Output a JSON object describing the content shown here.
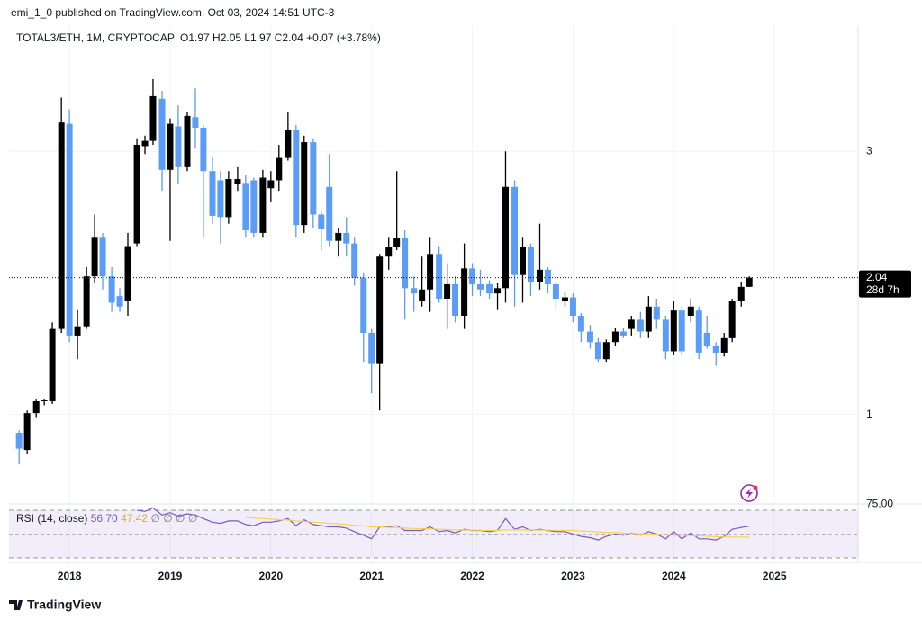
{
  "header": "emi_1_0 published on TradingView.com, Oct 03, 2024 14:51 UTC-3",
  "chart_data": {
    "type": "candlestick",
    "symbol": "TOTAL3/ETH, 1M, CRYPTOCAP",
    "ohlc_text": "O1.97  H2.05  L1.97  C2.04  +0.07 (+3.78%)",
    "up_color": "#000000",
    "down_color": "#5b9cf6",
    "x": [
      2017.5,
      2017.58,
      2017.67,
      2017.75,
      2017.83,
      2017.92,
      2018.0,
      2018.08,
      2018.17,
      2018.25,
      2018.33,
      2018.42,
      2018.5,
      2018.58,
      2018.67,
      2018.75,
      2018.83,
      2018.92,
      2019.0,
      2019.08,
      2019.17,
      2019.25,
      2019.33,
      2019.42,
      2019.5,
      2019.58,
      2019.67,
      2019.75,
      2019.83,
      2019.92,
      2020.0,
      2020.08,
      2020.17,
      2020.25,
      2020.33,
      2020.42,
      2020.5,
      2020.58,
      2020.67,
      2020.75,
      2020.83,
      2020.92,
      2021.0,
      2021.08,
      2021.17,
      2021.25,
      2021.33,
      2021.42,
      2021.5,
      2021.58,
      2021.67,
      2021.75,
      2021.83,
      2021.92,
      2022.0,
      2022.08,
      2022.17,
      2022.25,
      2022.33,
      2022.42,
      2022.5,
      2022.58,
      2022.67,
      2022.75,
      2022.83,
      2022.92,
      2023.0,
      2023.08,
      2023.17,
      2023.25,
      2023.33,
      2023.42,
      2023.5,
      2023.58,
      2023.67,
      2023.75,
      2023.83,
      2023.92,
      2024.0,
      2024.08,
      2024.17,
      2024.25,
      2024.33,
      2024.42,
      2024.5,
      2024.58,
      2024.67,
      2024.75
    ],
    "open": [
      0.86,
      0.73,
      1.01,
      1.1,
      1.1,
      1.65,
      3.21,
      1.6,
      1.67,
      2.05,
      2.35,
      2.05,
      1.9,
      1.86,
      2.3,
      3.04,
      3.08,
      3.4,
      2.86,
      3.19,
      2.88,
      3.26,
      3.18,
      2.85,
      2.78,
      2.5,
      2.75,
      2.76,
      2.78,
      2.38,
      2.72,
      2.78,
      2.95,
      3.16,
      2.44,
      3.07,
      2.52,
      2.73,
      2.32,
      2.38,
      2.3,
      2.04,
      1.62,
      1.39,
      2.2,
      2.27,
      2.34,
      1.96,
      1.86,
      1.95,
      2.22,
      1.88,
      1.99,
      1.75,
      2.11,
      1.99,
      1.99,
      1.92,
      1.96,
      2.73,
      2.06,
      2.27,
      2.01,
      2.1,
      1.99,
      1.86,
      1.89,
      1.75,
      1.63,
      1.55,
      1.42,
      1.55,
      1.63,
      1.65,
      1.72,
      1.63,
      1.82,
      1.72,
      1.48,
      1.79,
      1.75,
      1.79,
      1.62,
      1.52,
      1.47,
      1.58,
      1.86,
      1.97
    ],
    "high": [
      0.88,
      1.03,
      1.12,
      1.12,
      1.7,
      3.41,
      3.32,
      1.8,
      2.12,
      2.52,
      2.38,
      2.12,
      1.96,
      2.38,
      3.1,
      3.12,
      3.55,
      3.46,
      3.25,
      3.35,
      3.3,
      3.48,
      3.2,
      2.96,
      2.85,
      2.85,
      2.88,
      2.82,
      2.8,
      2.86,
      2.85,
      3.05,
      3.3,
      3.2,
      3.12,
      3.1,
      2.55,
      2.98,
      2.42,
      2.5,
      2.35,
      2.08,
      1.65,
      2.22,
      2.35,
      2.85,
      2.4,
      2.05,
      2.2,
      2.35,
      2.28,
      2.15,
      2.05,
      2.3,
      2.15,
      2.1,
      2.02,
      2.0,
      3.0,
      2.78,
      2.35,
      2.3,
      2.45,
      2.12,
      2.02,
      1.93,
      1.92,
      1.77,
      1.68,
      1.58,
      1.57,
      1.66,
      1.66,
      1.75,
      1.78,
      1.9,
      1.88,
      1.75,
      1.86,
      1.82,
      1.88,
      1.82,
      1.75,
      1.55,
      1.62,
      1.88,
      2.01,
      2.05
    ],
    "low": [
      0.62,
      0.7,
      0.98,
      1.07,
      1.08,
      1.62,
      1.55,
      1.42,
      1.65,
      2.0,
      1.95,
      1.78,
      1.78,
      1.75,
      2.28,
      2.98,
      3.05,
      2.7,
      2.32,
      2.75,
      2.85,
      3.02,
      2.35,
      2.45,
      2.3,
      2.45,
      2.7,
      2.35,
      2.35,
      2.35,
      2.62,
      2.7,
      2.93,
      2.35,
      2.38,
      2.42,
      2.25,
      2.28,
      2.2,
      2.2,
      1.98,
      1.4,
      1.16,
      1.03,
      2.1,
      2.25,
      1.72,
      1.78,
      1.82,
      1.78,
      1.85,
      1.65,
      1.7,
      1.65,
      1.9,
      1.9,
      1.88,
      1.8,
      1.85,
      1.82,
      1.85,
      1.9,
      1.95,
      1.92,
      1.8,
      1.82,
      1.7,
      1.55,
      1.5,
      1.4,
      1.4,
      1.52,
      1.58,
      1.6,
      1.58,
      1.58,
      1.65,
      1.42,
      1.45,
      1.45,
      1.7,
      1.42,
      1.5,
      1.37,
      1.44,
      1.55,
      1.82,
      1.97
    ],
    "close": [
      0.74,
      1.01,
      1.1,
      1.11,
      1.65,
      3.22,
      1.6,
      1.67,
      2.05,
      2.35,
      2.05,
      1.85,
      1.82,
      2.28,
      3.05,
      3.08,
      3.42,
      2.86,
      3.21,
      2.88,
      3.27,
      3.18,
      2.85,
      2.51,
      2.5,
      2.79,
      2.79,
      2.4,
      2.38,
      2.8,
      2.78,
      2.95,
      3.16,
      2.44,
      3.07,
      2.52,
      2.41,
      2.32,
      2.38,
      2.3,
      2.04,
      1.62,
      1.39,
      2.2,
      2.27,
      2.34,
      1.96,
      1.92,
      1.95,
      2.22,
      1.88,
      1.99,
      1.75,
      2.11,
      1.99,
      1.95,
      1.92,
      1.96,
      2.73,
      2.06,
      2.27,
      2.01,
      2.1,
      1.99,
      1.88,
      1.89,
      1.75,
      1.63,
      1.55,
      1.42,
      1.55,
      1.63,
      1.6,
      1.72,
      1.63,
      1.82,
      1.72,
      1.48,
      1.79,
      1.48,
      1.82,
      1.47,
      1.52,
      1.47,
      1.58,
      1.86,
      1.97,
      2.04
    ],
    "xlim": [
      2017.4,
      2025.83
    ],
    "xticks": [
      2018,
      2019,
      2020,
      2021,
      2022,
      2023,
      2024,
      2025
    ],
    "ylim": [
      0.32,
      3.96
    ],
    "yticks": [
      1,
      3
    ],
    "grid": true,
    "price_label": "2.04",
    "countdown": "28d 7h",
    "rsi": {
      "name": "RSI (14, close)",
      "last": "56.70",
      "ma_last": "47.42",
      "extra": "∅ ∅ ∅ ∅",
      "ylim": [
        26.2,
        75.3
      ],
      "yticks": [
        {
          "value": 75,
          "label": "75.00"
        }
      ],
      "bands": [
        70,
        50,
        30
      ],
      "series": [
        {
          "color": "#7e57c2",
          "values": [
            null,
            null,
            null,
            null,
            null,
            null,
            null,
            null,
            null,
            null,
            null,
            null,
            null,
            null,
            70,
            69,
            72,
            66,
            68,
            65,
            67,
            66,
            63,
            60,
            59,
            61,
            61,
            58,
            57,
            60,
            60,
            61,
            63,
            57,
            62,
            58,
            57,
            56,
            56,
            55,
            52,
            49,
            46,
            56,
            56,
            57,
            53,
            53,
            53,
            56,
            52,
            53,
            51,
            54,
            53,
            53,
            52,
            53,
            63,
            54,
            56,
            53,
            54,
            53,
            52,
            52,
            50,
            48,
            47,
            45,
            48,
            50,
            49,
            51,
            49,
            52,
            50,
            46,
            52,
            46,
            51,
            46,
            46,
            45,
            48,
            54,
            55.5,
            56.7
          ]
        },
        {
          "color": "#f5d547",
          "values": [
            null,
            null,
            null,
            null,
            null,
            null,
            null,
            null,
            null,
            null,
            null,
            null,
            null,
            null,
            null,
            null,
            null,
            null,
            null,
            null,
            null,
            null,
            null,
            null,
            null,
            null,
            null,
            64,
            63.5,
            63,
            62.5,
            62,
            61.8,
            61,
            60.6,
            60,
            59.5,
            59,
            58.6,
            58,
            57.5,
            56.8,
            56,
            56,
            55.6,
            55.4,
            55,
            54.7,
            54.5,
            54.3,
            54,
            53.8,
            53.5,
            53.4,
            53.3,
            53.2,
            53,
            53,
            53.6,
            53.5,
            53.5,
            53.4,
            53.4,
            53.3,
            53.2,
            53.2,
            53,
            52.6,
            52.2,
            51.8,
            51.4,
            51.2,
            50.8,
            50.5,
            50.2,
            50,
            49.8,
            49.4,
            49.2,
            48.9,
            48.8,
            48.5,
            48.2,
            47.8,
            47.5,
            47.4,
            47.4,
            47.42
          ]
        }
      ]
    }
  },
  "footer": "TradingView"
}
